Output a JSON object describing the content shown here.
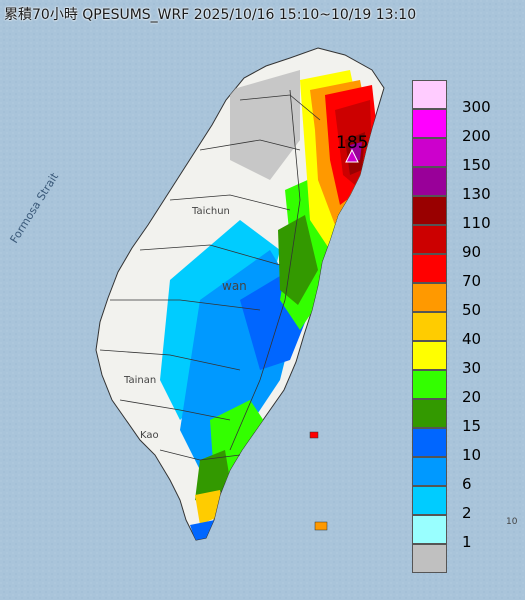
{
  "title": "累積70小時 QPESUMS_WRF 2025/10/16 15:10~10/19 13:10",
  "map_labels": {
    "strait": "Formosa Strait",
    "taichung": "Taichun",
    "taiwan": "wan",
    "tainan": "Tainan",
    "kaohsiung": "Kao",
    "corner": "10",
    "max_value": "185"
  },
  "legend": {
    "levels": [
      {
        "label": "300",
        "color": "#ffccff"
      },
      {
        "label": "200",
        "color": "#ff00ff"
      },
      {
        "label": "150",
        "color": "#cc00cc"
      },
      {
        "label": "130",
        "color": "#990099"
      },
      {
        "label": "110",
        "color": "#990000"
      },
      {
        "label": "90",
        "color": "#cc0000"
      },
      {
        "label": "70",
        "color": "#ff0000"
      },
      {
        "label": "50",
        "color": "#ff9900"
      },
      {
        "label": "40",
        "color": "#ffcc00"
      },
      {
        "label": "30",
        "color": "#ffff00"
      },
      {
        "label": "20",
        "color": "#33ff00"
      },
      {
        "label": "15",
        "color": "#339900"
      },
      {
        "label": "10",
        "color": "#0066ff"
      },
      {
        "label": "6",
        "color": "#0099ff"
      },
      {
        "label": "2",
        "color": "#00ccff"
      },
      {
        "label": "1",
        "color": "#99ffff"
      },
      {
        "label": "",
        "color": "#c0c0c0"
      }
    ]
  },
  "colors": {
    "sea": "#a7c3da",
    "land_dry": "#f3f3f0"
  }
}
